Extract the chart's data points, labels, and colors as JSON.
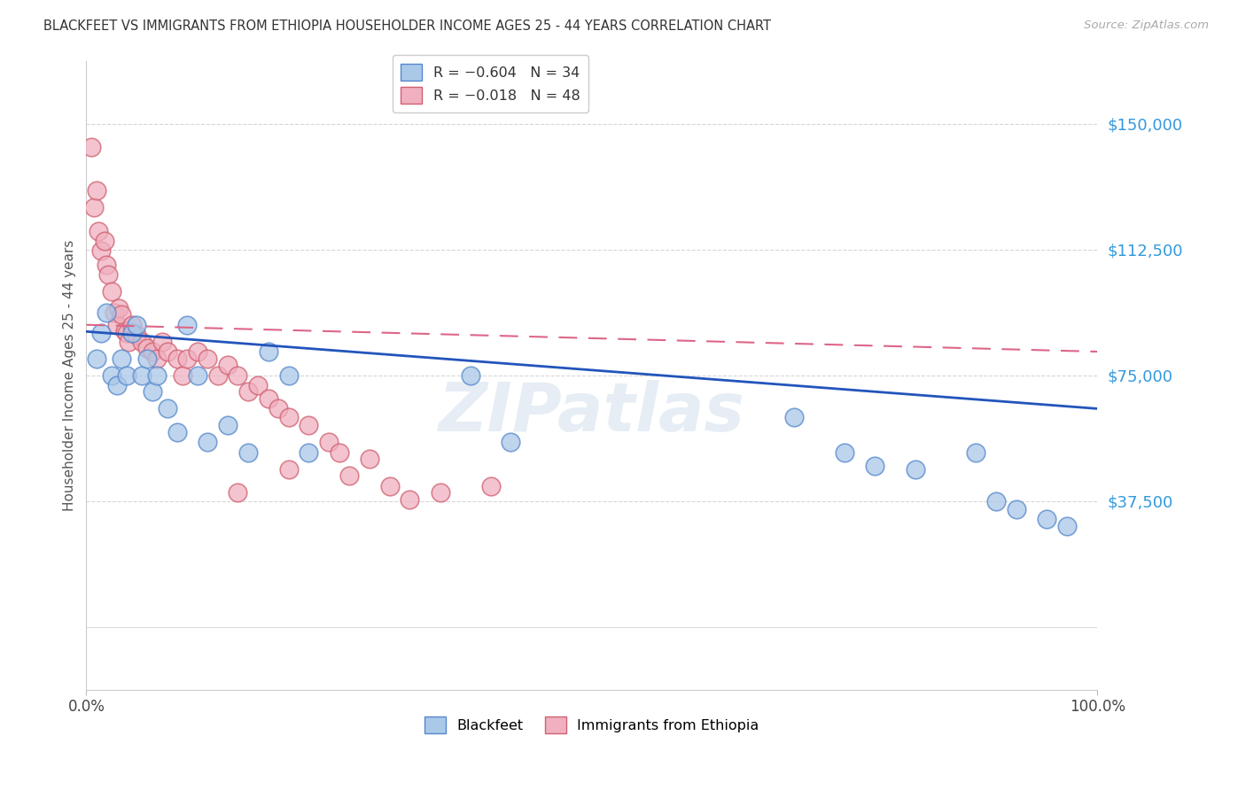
{
  "title": "BLACKFEET VS IMMIGRANTS FROM ETHIOPIA HOUSEHOLDER INCOME AGES 25 - 44 YEARS CORRELATION CHART",
  "source": "Source: ZipAtlas.com",
  "ylabel": "Householder Income Ages 25 - 44 years",
  "xmin": 0.0,
  "xmax": 100.0,
  "ymin": -18750,
  "ymax": 168750,
  "yticks": [
    37500,
    75000,
    112500,
    150000
  ],
  "ytick_labels": [
    "$37,500",
    "$75,000",
    "$112,500",
    "$150,000"
  ],
  "watermark_text": "ZIPatlas",
  "blue_scatter_color": "#aac8e8",
  "blue_scatter_edge": "#5588cc",
  "pink_scatter_color": "#f0b0c0",
  "pink_scatter_edge": "#d06070",
  "blue_line_color": "#2255bb",
  "pink_line_color": "#dd6688",
  "grid_color": "#cccccc",
  "blackfeet_x": [
    1.0,
    1.5,
    2.0,
    2.5,
    3.0,
    3.5,
    4.0,
    4.5,
    5.0,
    5.5,
    6.0,
    6.5,
    7.0,
    8.0,
    9.0,
    10.0,
    11.0,
    12.0,
    14.0,
    16.0,
    18.0,
    20.0,
    22.0,
    38.0,
    42.0,
    70.0,
    75.0,
    78.0,
    82.0,
    88.0,
    90.0,
    92.0,
    95.0,
    97.0
  ],
  "blackfeet_y": [
    80000,
    87500,
    93750,
    75000,
    72000,
    80000,
    75000,
    87500,
    90000,
    75000,
    80000,
    70000,
    75000,
    65000,
    58000,
    90000,
    75000,
    55000,
    60000,
    52000,
    82000,
    75000,
    52000,
    75000,
    55000,
    62500,
    52000,
    48000,
    47000,
    52000,
    37500,
    35000,
    32000,
    30000
  ],
  "ethiopia_x": [
    0.5,
    0.8,
    1.0,
    1.2,
    1.5,
    1.8,
    2.0,
    2.2,
    2.5,
    2.8,
    3.0,
    3.2,
    3.5,
    3.8,
    4.0,
    4.2,
    4.5,
    5.0,
    5.5,
    6.0,
    6.5,
    7.0,
    7.5,
    8.0,
    9.0,
    9.5,
    10.0,
    11.0,
    12.0,
    13.0,
    14.0,
    15.0,
    16.0,
    17.0,
    18.0,
    19.0,
    20.0,
    22.0,
    24.0,
    25.0,
    26.0,
    28.0,
    30.0,
    32.0,
    35.0,
    40.0,
    20.0,
    15.0
  ],
  "ethiopia_y": [
    143000,
    125000,
    130000,
    118000,
    112000,
    115000,
    108000,
    105000,
    100000,
    93750,
    90000,
    95000,
    93000,
    88000,
    87500,
    85000,
    90000,
    87000,
    85000,
    83000,
    82000,
    80000,
    85000,
    82000,
    80000,
    75000,
    80000,
    82000,
    80000,
    75000,
    78000,
    75000,
    70000,
    72000,
    68000,
    65000,
    62500,
    60000,
    55000,
    52000,
    45000,
    50000,
    42000,
    38000,
    40000,
    42000,
    47000,
    40000
  ],
  "blue_trend_x0": 0,
  "blue_trend_y0": 88000,
  "blue_trend_x1": 100,
  "blue_trend_y1": 65000,
  "pink_trend_x0": 0,
  "pink_trend_y0": 90000,
  "pink_trend_x1": 100,
  "pink_trend_y1": 82000
}
